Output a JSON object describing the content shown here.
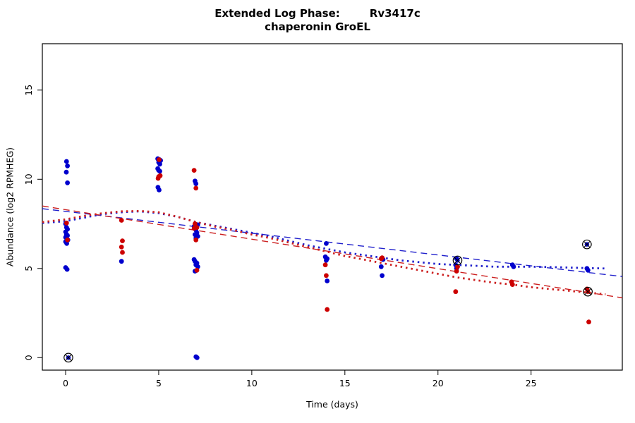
{
  "title": {
    "line1_left": "Extended Log Phase:",
    "line1_right": "Rv3417c",
    "line2": "chaperonin GroEL"
  },
  "chart_data": {
    "type": "scatter",
    "title": "Extended Log Phase: Rv3417c — chaperonin GroEL",
    "xlabel": "Time  (days)",
    "ylabel": "Abundance  (log2 RPMHEG)",
    "xlim": [
      -1.25,
      29.9
    ],
    "ylim": [
      -0.7,
      17.6
    ],
    "xticks": [
      0,
      5,
      10,
      15,
      20,
      25
    ],
    "yticks": [
      0,
      5,
      10,
      15
    ],
    "grid": false,
    "legend": "none",
    "colors": {
      "blue": "#0000CD",
      "red": "#CC0000"
    },
    "series": [
      {
        "name": "blue-points",
        "color": "#0000CD",
        "points": [
          [
            0.05,
            11.0
          ],
          [
            0.1,
            10.75
          ],
          [
            0.04,
            10.4
          ],
          [
            0.1,
            9.8
          ],
          [
            0.0,
            7.5
          ],
          [
            0.05,
            7.3
          ],
          [
            0.1,
            7.2
          ],
          [
            0.0,
            7.05
          ],
          [
            0.05,
            6.9
          ],
          [
            0.1,
            6.85
          ],
          [
            0.0,
            6.75
          ],
          [
            0.05,
            6.7
          ],
          [
            0.12,
            6.6
          ],
          [
            0.0,
            6.5
          ],
          [
            0.06,
            6.4
          ],
          [
            0.0,
            5.05
          ],
          [
            0.08,
            4.95
          ],
          [
            3.0,
            5.4
          ],
          [
            4.95,
            11.15
          ],
          [
            5.05,
            11.1
          ],
          [
            5.1,
            11.05
          ],
          [
            5.0,
            10.95
          ],
          [
            5.06,
            10.85
          ],
          [
            4.95,
            10.6
          ],
          [
            5.0,
            10.5
          ],
          [
            5.06,
            10.45
          ],
          [
            4.96,
            9.55
          ],
          [
            5.02,
            9.4
          ],
          [
            6.95,
            9.9
          ],
          [
            7.0,
            9.75
          ],
          [
            7.1,
            7.45
          ],
          [
            6.9,
            7.35
          ],
          [
            7.0,
            7.15
          ],
          [
            7.05,
            7.0
          ],
          [
            6.95,
            6.9
          ],
          [
            7.1,
            6.8
          ],
          [
            7.0,
            6.7
          ],
          [
            6.9,
            5.5
          ],
          [
            6.95,
            5.4
          ],
          [
            7.05,
            5.3
          ],
          [
            7.0,
            5.2
          ],
          [
            7.1,
            5.1
          ],
          [
            6.95,
            4.85
          ],
          [
            7.0,
            0.05
          ],
          [
            7.06,
            0.0
          ],
          [
            14.0,
            6.4
          ],
          [
            13.95,
            5.65
          ],
          [
            14.05,
            5.55
          ],
          [
            14.0,
            5.45
          ],
          [
            14.05,
            4.3
          ],
          [
            17.05,
            5.5
          ],
          [
            16.95,
            5.1
          ],
          [
            17.0,
            4.6
          ],
          [
            21.0,
            5.55
          ],
          [
            20.95,
            5.2
          ],
          [
            21.0,
            5.0
          ],
          [
            24.0,
            5.2
          ],
          [
            24.06,
            5.1
          ],
          [
            28.0,
            5.0
          ],
          [
            28.06,
            4.9
          ]
        ]
      },
      {
        "name": "red-points",
        "color": "#CC0000",
        "points": [
          [
            0.05,
            7.55
          ],
          [
            0.1,
            6.6
          ],
          [
            3.0,
            7.7
          ],
          [
            3.05,
            6.55
          ],
          [
            3.0,
            6.2
          ],
          [
            3.05,
            5.9
          ],
          [
            5.02,
            11.1
          ],
          [
            5.08,
            10.2
          ],
          [
            5.0,
            10.15
          ],
          [
            4.97,
            10.05
          ],
          [
            6.9,
            10.5
          ],
          [
            7.0,
            9.5
          ],
          [
            6.95,
            7.5
          ],
          [
            7.05,
            7.3
          ],
          [
            6.9,
            7.25
          ],
          [
            7.0,
            6.6
          ],
          [
            7.05,
            4.9
          ],
          [
            13.95,
            5.2
          ],
          [
            14.0,
            4.6
          ],
          [
            14.05,
            2.7
          ],
          [
            17.0,
            5.6
          ],
          [
            16.95,
            5.55
          ],
          [
            21.05,
            5.1
          ],
          [
            21.0,
            4.85
          ],
          [
            20.95,
            3.7
          ],
          [
            23.95,
            4.25
          ],
          [
            24.0,
            4.1
          ],
          [
            28.0,
            3.85
          ],
          [
            28.1,
            2.0
          ]
        ]
      }
    ],
    "outliers_circled": [
      {
        "x": 0.15,
        "y": 0.0,
        "color": "#0000CD"
      },
      {
        "x": 21.05,
        "y": 5.45,
        "color": "#0000CD"
      },
      {
        "x": 28.0,
        "y": 6.35,
        "color": "#0000CD"
      },
      {
        "x": 28.05,
        "y": 3.7,
        "color": "#CC0000"
      }
    ],
    "lines": [
      {
        "name": "blue-linear-fit",
        "color": "#2020CC",
        "dash": "9,6",
        "width": 1.4,
        "points": [
          [
            -1.25,
            8.35
          ],
          [
            29.9,
            4.55
          ]
        ]
      },
      {
        "name": "red-linear-fit",
        "color": "#CC2020",
        "dash": "9,6",
        "width": 1.4,
        "points": [
          [
            -1.25,
            8.5
          ],
          [
            29.9,
            3.35
          ]
        ]
      },
      {
        "name": "blue-loess-fit",
        "color": "#2020CC",
        "dash": "2.5,5",
        "width": 2.8,
        "points": [
          [
            -1.25,
            7.55
          ],
          [
            0,
            7.65
          ],
          [
            1,
            7.85
          ],
          [
            2,
            8.05
          ],
          [
            3,
            8.15
          ],
          [
            4,
            8.2
          ],
          [
            5,
            8.1
          ],
          [
            6,
            7.9
          ],
          [
            7,
            7.6
          ],
          [
            8,
            7.4
          ],
          [
            9,
            7.2
          ],
          [
            10,
            7.0
          ],
          [
            11,
            6.8
          ],
          [
            12,
            6.55
          ],
          [
            13,
            6.3
          ],
          [
            14,
            6.1
          ],
          [
            15,
            5.9
          ],
          [
            16,
            5.75
          ],
          [
            17,
            5.6
          ],
          [
            18,
            5.45
          ],
          [
            19,
            5.35
          ],
          [
            20,
            5.25
          ],
          [
            21,
            5.2
          ],
          [
            22,
            5.15
          ],
          [
            23,
            5.1
          ],
          [
            24,
            5.1
          ],
          [
            25,
            5.1
          ],
          [
            26,
            5.08
          ],
          [
            27,
            5.05
          ],
          [
            28,
            5.02
          ],
          [
            29,
            5.0
          ]
        ]
      },
      {
        "name": "red-loess-fit",
        "color": "#CC2020",
        "dash": "2.5,5",
        "width": 2.8,
        "points": [
          [
            -1.25,
            7.6
          ],
          [
            0,
            7.75
          ],
          [
            1,
            7.95
          ],
          [
            2,
            8.1
          ],
          [
            3,
            8.2
          ],
          [
            4,
            8.22
          ],
          [
            5,
            8.15
          ],
          [
            6,
            7.9
          ],
          [
            7,
            7.6
          ],
          [
            8,
            7.35
          ],
          [
            9,
            7.15
          ],
          [
            10,
            6.9
          ],
          [
            11,
            6.7
          ],
          [
            12,
            6.45
          ],
          [
            13,
            6.2
          ],
          [
            14,
            5.95
          ],
          [
            15,
            5.7
          ],
          [
            16,
            5.5
          ],
          [
            17,
            5.3
          ],
          [
            18,
            5.1
          ],
          [
            19,
            4.9
          ],
          [
            20,
            4.7
          ],
          [
            21,
            4.5
          ],
          [
            22,
            4.35
          ],
          [
            23,
            4.2
          ],
          [
            24,
            4.1
          ],
          [
            25,
            3.95
          ],
          [
            26,
            3.85
          ],
          [
            27,
            3.75
          ],
          [
            28,
            3.65
          ],
          [
            29,
            3.55
          ]
        ]
      }
    ]
  }
}
